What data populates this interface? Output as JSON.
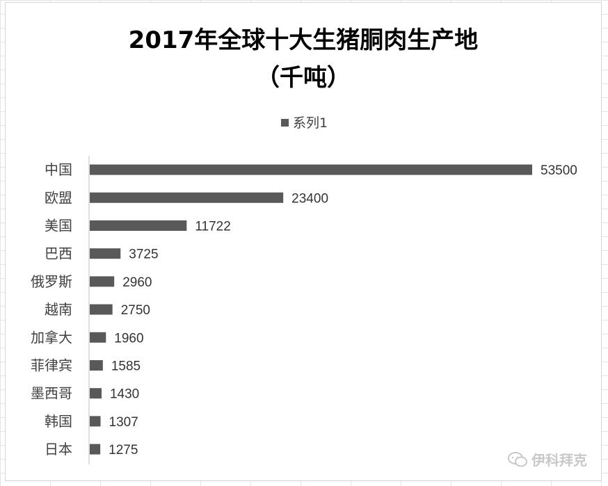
{
  "chart_data": {
    "type": "bar",
    "orientation": "horizontal",
    "title": "2017年全球十大生猪胴肉生产地",
    "subtitle": "（千吨）",
    "legend_position": "top",
    "grid": false,
    "categories": [
      "中国",
      "欧盟",
      "美国",
      "巴西",
      "俄罗斯",
      "越南",
      "加拿大",
      "菲律宾",
      "墨西哥",
      "韩国",
      "日本"
    ],
    "series": [
      {
        "name": "系列1",
        "color": "#595959",
        "values": [
          53500,
          23400,
          11722,
          3725,
          2960,
          2750,
          1960,
          1585,
          1430,
          1307,
          1275
        ]
      }
    ]
  },
  "watermark": {
    "text": "伊科拜克",
    "icon": "wechat-icon"
  }
}
